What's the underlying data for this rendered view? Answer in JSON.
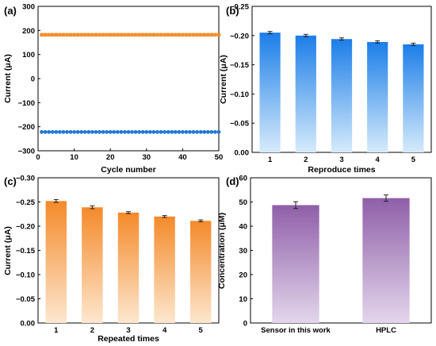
{
  "chart_data": [
    {
      "panel": "(a)",
      "type": "scatter",
      "xlabel": "Cycle number",
      "ylabel": "Current (μA)",
      "xlim": [
        0,
        50
      ],
      "ylim": [
        -300,
        300
      ],
      "xticks": [
        0,
        10,
        20,
        30,
        40,
        50
      ],
      "yticks": [
        -300,
        -200,
        -100,
        0,
        100,
        200,
        300
      ],
      "series": [
        {
          "marker": "square",
          "color": "#f28c28",
          "x_start": 1,
          "x_end": 50,
          "y": 182
        },
        {
          "marker": "circle",
          "color": "#1f77d4",
          "x_start": 1,
          "x_end": 50,
          "y": -222
        }
      ]
    },
    {
      "panel": "(b)",
      "type": "bar",
      "xlabel": "Reproduce times",
      "ylabel": "Current (μA)",
      "categories": [
        "1",
        "2",
        "3",
        "4",
        "5"
      ],
      "values": [
        -0.205,
        -0.2,
        -0.194,
        -0.189,
        -0.185
      ],
      "errors": [
        0.002,
        0.002,
        0.002,
        0.002,
        0.002
      ],
      "ylim": [
        0.0,
        -0.25
      ],
      "yticks": [
        0.0,
        -0.05,
        -0.1,
        -0.15,
        -0.2,
        -0.25
      ],
      "ytick_labels": [
        "0.00",
        "−0.05",
        "−0.10",
        "−0.15",
        "−0.20",
        "−0.25"
      ],
      "color_top": "#1c7ee8",
      "color_bottom": "#d6ebfb"
    },
    {
      "panel": "(c)",
      "type": "bar",
      "xlabel": "Repeated times",
      "ylabel": "Current (μA)",
      "categories": [
        "1",
        "2",
        "3",
        "4",
        "5"
      ],
      "values": [
        -0.252,
        -0.239,
        -0.228,
        -0.22,
        -0.211
      ],
      "errors": [
        0.003,
        0.003,
        0.002,
        0.002,
        0.002
      ],
      "ylim": [
        0.0,
        -0.3
      ],
      "yticks": [
        0.0,
        -0.05,
        -0.1,
        -0.15,
        -0.2,
        -0.25,
        -0.3
      ],
      "ytick_labels": [
        "0.00",
        "−0.05",
        "−0.10",
        "−0.15",
        "−0.20",
        "−0.25",
        "−0.30"
      ],
      "color_top": "#f48a2a",
      "color_bottom": "#fde7cf"
    },
    {
      "panel": "(d)",
      "type": "bar",
      "xlabel": "",
      "ylabel": "Concentration (μM)",
      "categories": [
        "Sensor in this work",
        "HPLC"
      ],
      "values": [
        48.7,
        51.6
      ],
      "errors": [
        1.4,
        1.3
      ],
      "ylim": [
        0,
        60
      ],
      "yticks": [
        0,
        10,
        20,
        30,
        40,
        50,
        60
      ],
      "ytick_labels": [
        "0",
        "10",
        "20",
        "30",
        "40",
        "50",
        "60"
      ],
      "color_top": "#8f5fa8",
      "color_bottom": "#e3d6ec"
    }
  ]
}
